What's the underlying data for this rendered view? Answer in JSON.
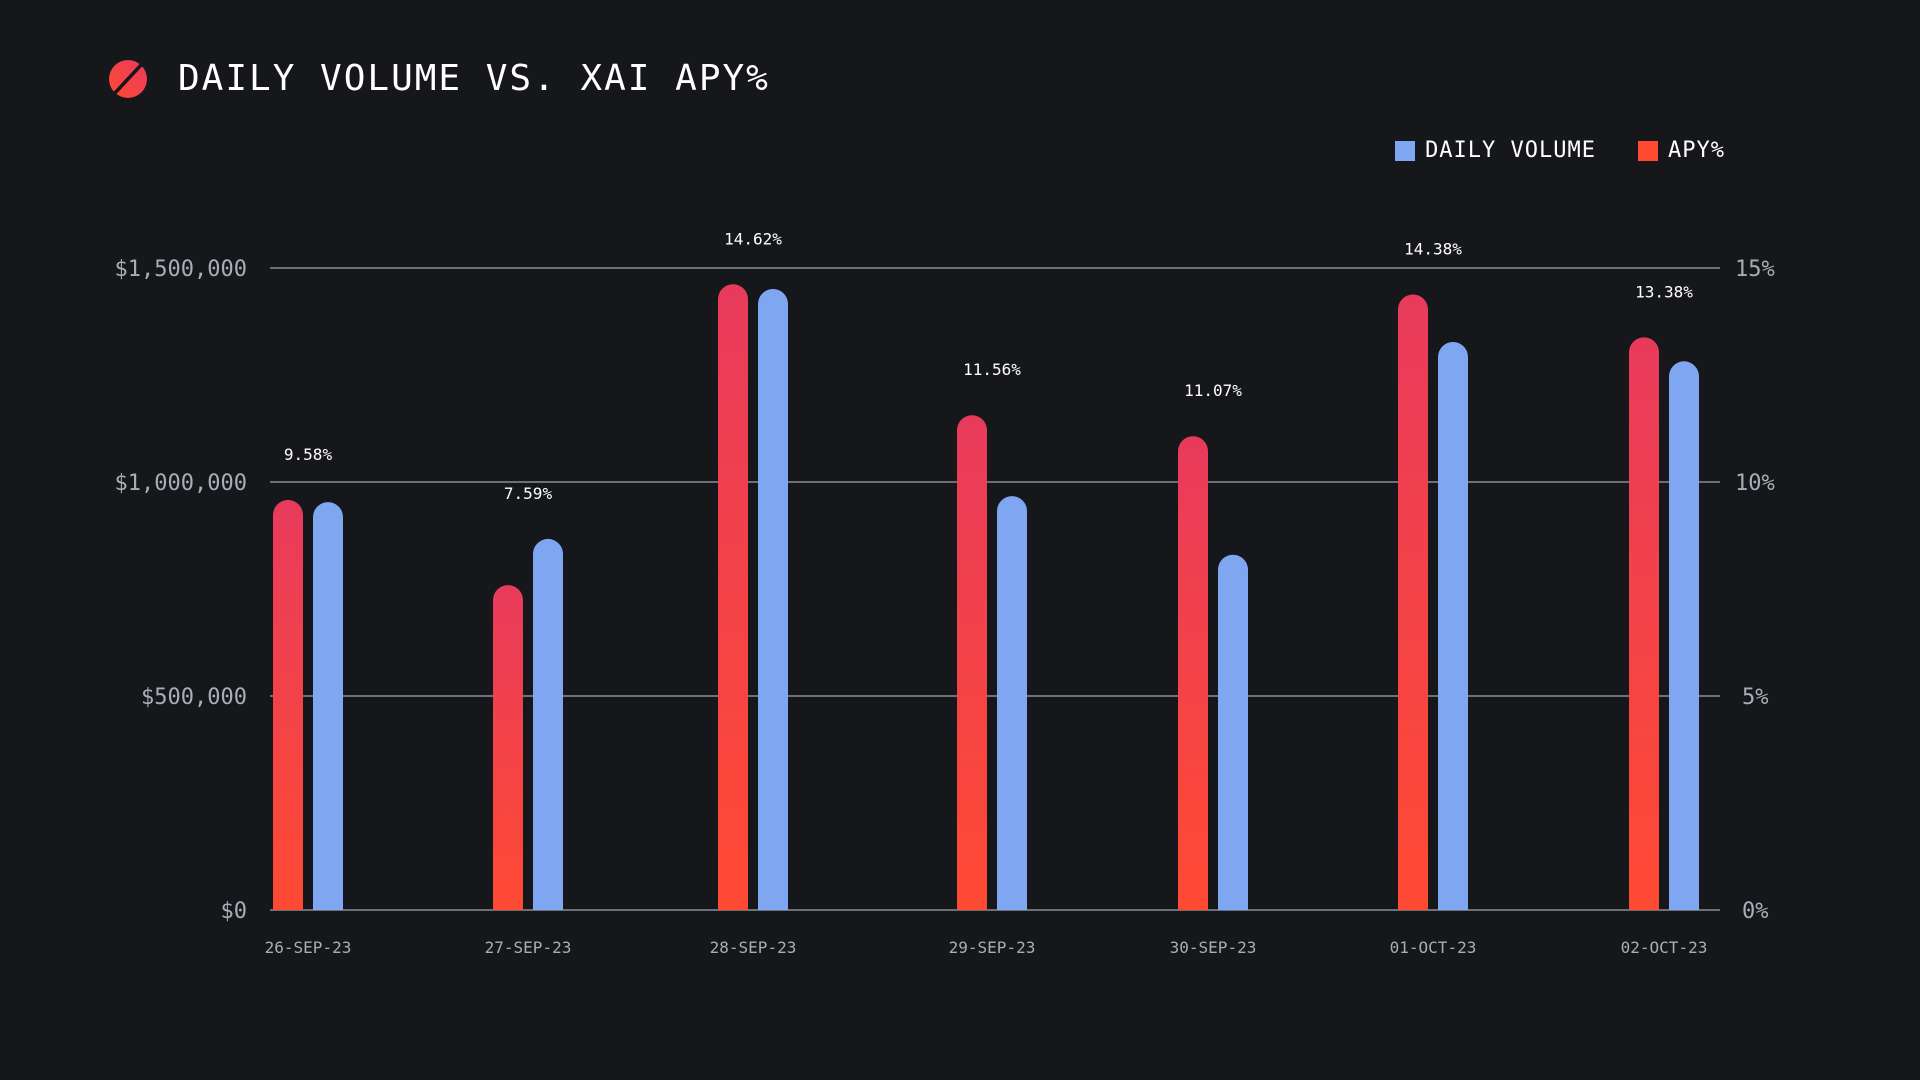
{
  "chart_data": {
    "type": "bar",
    "title": "DAILY VOLUME VS. XAI APY%",
    "categories": [
      "26-SEP-23",
      "27-SEP-23",
      "28-SEP-23",
      "29-SEP-23",
      "30-SEP-23",
      "01-OCT-23",
      "02-OCT-23"
    ],
    "series": [
      {
        "name": "APY%",
        "axis": "right",
        "color": "#ff4a33",
        "color_top": "#e83b5c",
        "values": [
          9.58,
          7.59,
          14.62,
          11.56,
          11.07,
          14.38,
          13.38
        ],
        "labels": [
          "9.58%",
          "7.59%",
          "14.62%",
          "11.56%",
          "11.07%",
          "14.38%",
          "13.38%"
        ]
      },
      {
        "name": "DAILY VOLUME",
        "axis": "left",
        "color": "#7fa6f0",
        "values": [
          953000,
          867000,
          1451000,
          967000,
          830000,
          1327000,
          1282000
        ]
      }
    ],
    "apy_label_anchor": "top of taller bar in group",
    "left_axis": {
      "ylim": [
        0,
        1500000
      ],
      "ticks": [
        0,
        500000,
        1000000,
        1500000
      ],
      "tick_labels": [
        "$0",
        "$500,000",
        "$1,000,000",
        "$1,500,000"
      ]
    },
    "right_axis": {
      "ylim": [
        0,
        15
      ],
      "ticks": [
        0,
        5,
        10,
        15
      ],
      "tick_labels": [
        "0%",
        "5%",
        "10%",
        "15%"
      ]
    },
    "grid": true,
    "legend_position": "top-right",
    "xlabel": "",
    "ylabel": ""
  },
  "header": {
    "title": "DAILY VOLUME VS. XAI APY%",
    "logo_icon": "slashed-circle-icon"
  },
  "legend": [
    {
      "label": "DAILY VOLUME",
      "color": "#7fa6f0"
    },
    {
      "label": "APY%",
      "color": "#ff4a33"
    }
  ]
}
